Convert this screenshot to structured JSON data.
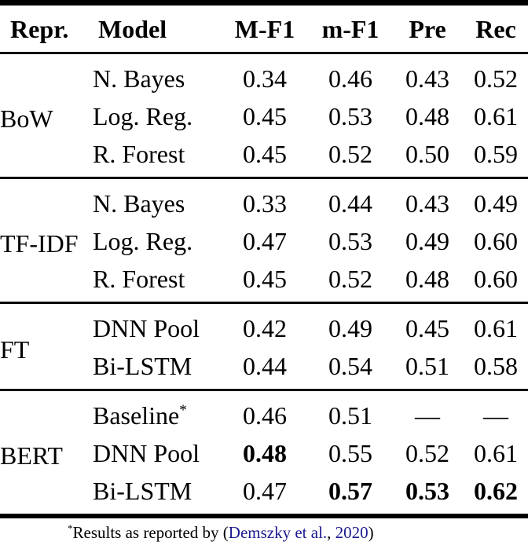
{
  "table": {
    "headers": {
      "repr": "Repr.",
      "model": "Model",
      "macro_f1": "M-F1",
      "micro_f1": "m-F1",
      "precision": "Pre",
      "recall": "Rec"
    },
    "groups": [
      {
        "repr": "BoW",
        "rows": [
          {
            "model": "N. Bayes",
            "values": [
              "0.34",
              "0.46",
              "0.43",
              "0.52"
            ],
            "bold": [
              false,
              false,
              false,
              false
            ]
          },
          {
            "model": "Log. Reg.",
            "values": [
              "0.45",
              "0.53",
              "0.48",
              "0.61"
            ],
            "bold": [
              false,
              false,
              false,
              false
            ]
          },
          {
            "model": "R. Forest",
            "values": [
              "0.45",
              "0.52",
              "0.50",
              "0.59"
            ],
            "bold": [
              false,
              false,
              false,
              false
            ]
          }
        ]
      },
      {
        "repr": "TF-IDF",
        "rows": [
          {
            "model": "N. Bayes",
            "values": [
              "0.33",
              "0.44",
              "0.43",
              "0.49"
            ],
            "bold": [
              false,
              false,
              false,
              false
            ]
          },
          {
            "model": "Log. Reg.",
            "values": [
              "0.47",
              "0.53",
              "0.49",
              "0.60"
            ],
            "bold": [
              false,
              false,
              false,
              false
            ]
          },
          {
            "model": "R. Forest",
            "values": [
              "0.45",
              "0.52",
              "0.48",
              "0.60"
            ],
            "bold": [
              false,
              false,
              false,
              false
            ]
          }
        ]
      },
      {
        "repr": "FT",
        "rows": [
          {
            "model": "DNN Pool",
            "values": [
              "0.42",
              "0.49",
              "0.45",
              "0.61"
            ],
            "bold": [
              false,
              false,
              false,
              false
            ]
          },
          {
            "model": "Bi-LSTM",
            "values": [
              "0.44",
              "0.54",
              "0.51",
              "0.58"
            ],
            "bold": [
              false,
              false,
              false,
              false
            ]
          }
        ]
      },
      {
        "repr": "BERT",
        "rows": [
          {
            "model": "Baseline",
            "marker": "*",
            "values": [
              "0.46",
              "0.51",
              "—",
              "—"
            ],
            "bold": [
              false,
              false,
              false,
              false
            ]
          },
          {
            "model": "DNN Pool",
            "values": [
              "0.48",
              "0.55",
              "0.52",
              "0.61"
            ],
            "bold": [
              true,
              false,
              false,
              false
            ]
          },
          {
            "model": "Bi-LSTM",
            "values": [
              "0.47",
              "0.57",
              "0.53",
              "0.62"
            ],
            "bold": [
              false,
              true,
              true,
              true
            ]
          }
        ]
      }
    ]
  },
  "footnote": {
    "marker": "*",
    "text_before": "Results as reported by (",
    "cite_authors": "Demszky et al.",
    "separator": ", ",
    "cite_year": "2020",
    "text_after": ")"
  },
  "colors": {
    "citation_blue": "#1a1a8f",
    "rule_black": "#000000",
    "text_black": "#000000",
    "background": "#ffffff"
  }
}
